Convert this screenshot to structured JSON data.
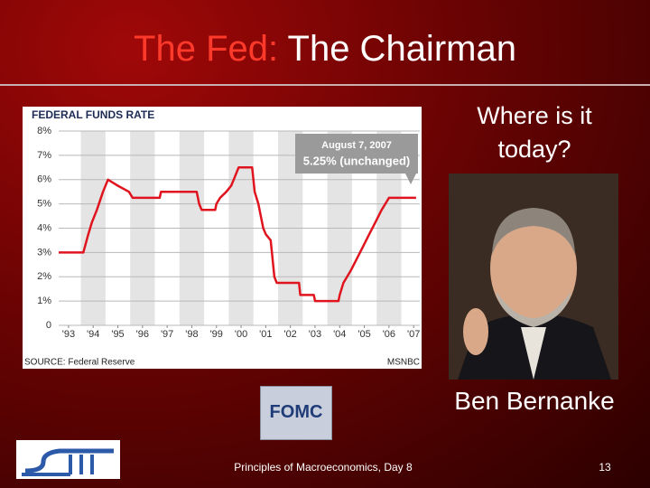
{
  "slide": {
    "title_prefix": "The Fed:",
    "title": "The Chairman",
    "question": "Where is it today?",
    "caption": "Ben Bernanke",
    "logo_text": "FOMC",
    "footer": "Principles of Macroeconomics, Day 8",
    "page_number": "13"
  },
  "chart_data": {
    "type": "line",
    "title": "FEDERAL FUNDS RATE",
    "annotation": {
      "date": "August 7, 2007",
      "text": "5.25% (unchanged)"
    },
    "source": "SOURCE: Federal Reserve",
    "credit": "MSNBC",
    "x": [
      1993.1,
      1994.1,
      1994.3,
      1994.45,
      1994.65,
      1994.9,
      1995.1,
      1995.5,
      1995.95,
      1996.1,
      1997.2,
      1997.25,
      1998.7,
      1998.8,
      1998.9,
      1999.45,
      1999.5,
      1999.65,
      1999.9,
      2000.1,
      2000.2,
      2000.4,
      2000.95,
      2001.05,
      2001.2,
      2001.3,
      2001.4,
      2001.5,
      2001.7,
      2001.75,
      2001.85,
      2001.95,
      2002.85,
      2002.9,
      2003.45,
      2003.5,
      2004.45,
      2004.5,
      2004.65,
      2004.95,
      2005.2,
      2005.45,
      2005.7,
      2005.95,
      2006.2,
      2006.5,
      2007.6
    ],
    "series": [
      {
        "name": "Federal funds rate",
        "color": "#e0141e",
        "values": [
          3,
          3,
          3.75,
          4.25,
          4.75,
          5.5,
          6,
          5.75,
          5.5,
          5.25,
          5.25,
          5.5,
          5.5,
          5,
          4.75,
          4.75,
          5,
          5.25,
          5.5,
          5.75,
          6,
          6.5,
          6.5,
          5.5,
          5,
          4.5,
          4,
          3.75,
          3.5,
          3,
          2,
          1.75,
          1.75,
          1.25,
          1.25,
          1,
          1,
          1.25,
          1.75,
          2.25,
          2.75,
          3.25,
          3.75,
          4.25,
          4.75,
          5.25,
          5.25
        ]
      }
    ],
    "xlim": [
      1993.1,
      2007.75
    ],
    "xticks": [
      {
        "value": 1993.5,
        "label": "'93"
      },
      {
        "value": 1994.5,
        "label": "'94"
      },
      {
        "value": 1995.5,
        "label": "'95"
      },
      {
        "value": 1996.5,
        "label": "'96"
      },
      {
        "value": 1997.5,
        "label": "'97"
      },
      {
        "value": 1998.5,
        "label": "'98"
      },
      {
        "value": 1999.5,
        "label": "'99"
      },
      {
        "value": 2000.5,
        "label": "'00"
      },
      {
        "value": 2001.5,
        "label": "'01"
      },
      {
        "value": 2002.5,
        "label": "'02"
      },
      {
        "value": 2003.5,
        "label": "'03"
      },
      {
        "value": 2004.5,
        "label": "'04"
      },
      {
        "value": 2005.5,
        "label": "'05"
      },
      {
        "value": 2006.5,
        "label": "'06"
      },
      {
        "value": 2007.5,
        "label": "'07"
      }
    ],
    "ylim": [
      0,
      8
    ],
    "yticks": [
      0,
      {
        "value": 1,
        "label": "1%"
      },
      {
        "value": 2,
        "label": "2%"
      },
      {
        "value": 3,
        "label": "3%"
      },
      {
        "value": 4,
        "label": "4%"
      },
      {
        "value": 5,
        "label": "5%"
      },
      {
        "value": 6,
        "label": "6%"
      },
      {
        "value": 7,
        "label": "7%"
      },
      {
        "value": 8,
        "label": "8%"
      }
    ],
    "grid": true
  }
}
